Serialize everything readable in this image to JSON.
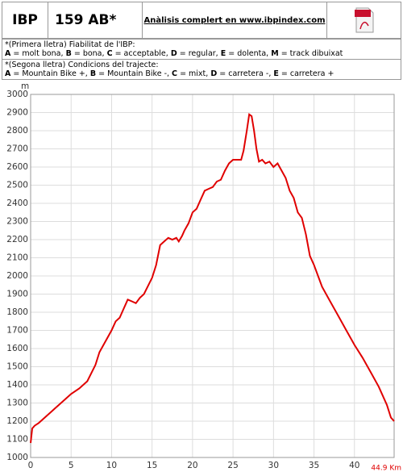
{
  "header": {
    "ibp_label": "IBP",
    "ibp_value": "159 AB*",
    "link": "Anàlisis complert en www.ibpindex.com"
  },
  "legend": [
    {
      "title": "*(Primera lletra) Fiabilitat de l'IBP:",
      "items": [
        {
          "key": "A",
          "desc": "= molt bona,"
        },
        {
          "key": "B",
          "desc": "= bona,"
        },
        {
          "key": "C",
          "desc": "= acceptable,"
        },
        {
          "key": "D",
          "desc": "= regular,"
        },
        {
          "key": "E",
          "desc": "= dolenta,"
        },
        {
          "key": "M",
          "desc": "= track dibuixat"
        }
      ]
    },
    {
      "title": "*(Segona lletra) Condicions del trajecte:",
      "items": [
        {
          "key": "A",
          "desc": "= Mountain Bike +,"
        },
        {
          "key": "B",
          "desc": "= Mountain Bike -,"
        },
        {
          "key": "C",
          "desc": "= mixt,"
        },
        {
          "key": "D",
          "desc": "= carretera -,"
        },
        {
          "key": "E",
          "desc": "= carretera +"
        }
      ]
    }
  ],
  "chart_data": {
    "type": "line",
    "y_unit": "m",
    "x_end_label": "44.9 Km",
    "x": [
      0,
      0.2,
      0.5,
      1,
      2,
      3,
      4,
      5,
      6,
      7,
      8,
      8.5,
      9,
      10,
      10.5,
      11,
      11.5,
      12,
      12.5,
      13,
      13.5,
      14,
      15,
      15.5,
      16,
      16.5,
      17,
      17.5,
      18,
      18.3,
      18.7,
      19,
      19.5,
      20,
      20.5,
      21,
      21.5,
      22,
      22.5,
      23,
      23.5,
      24,
      24.5,
      25,
      25.5,
      26,
      26.3,
      26.7,
      27,
      27.3,
      27.6,
      27.9,
      28.2,
      28.6,
      29,
      29.5,
      30,
      30.5,
      31,
      31.5,
      32,
      32.5,
      33,
      33.5,
      34,
      34.5,
      35,
      35.5,
      36,
      37,
      38,
      39,
      40,
      41,
      42,
      43,
      44,
      44.5,
      44.9
    ],
    "series": [
      {
        "name": "elevation",
        "color": "#e00000",
        "values": [
          1080,
          1160,
          1175,
          1190,
          1230,
          1270,
          1310,
          1350,
          1380,
          1420,
          1510,
          1580,
          1620,
          1700,
          1750,
          1770,
          1820,
          1870,
          1860,
          1850,
          1880,
          1900,
          1990,
          2060,
          2170,
          2190,
          2210,
          2200,
          2210,
          2190,
          2220,
          2250,
          2290,
          2350,
          2370,
          2420,
          2470,
          2480,
          2490,
          2520,
          2530,
          2580,
          2620,
          2640,
          2640,
          2640,
          2690,
          2800,
          2890,
          2880,
          2800,
          2700,
          2630,
          2640,
          2620,
          2630,
          2600,
          2620,
          2580,
          2540,
          2470,
          2430,
          2350,
          2320,
          2230,
          2110,
          2060,
          2000,
          1940,
          1860,
          1780,
          1700,
          1620,
          1550,
          1470,
          1390,
          1290,
          1220,
          1200
        ]
      }
    ],
    "xlim": [
      0,
      44.9
    ],
    "xticks": [
      0,
      5,
      10,
      15,
      20,
      25,
      30,
      35,
      40
    ],
    "ylim": [
      1000,
      3000
    ],
    "yticks": [
      1000,
      1100,
      1200,
      1300,
      1400,
      1500,
      1600,
      1700,
      1800,
      1900,
      2000,
      2100,
      2200,
      2300,
      2400,
      2500,
      2600,
      2700,
      2800,
      2900,
      3000
    ],
    "grid": true
  }
}
